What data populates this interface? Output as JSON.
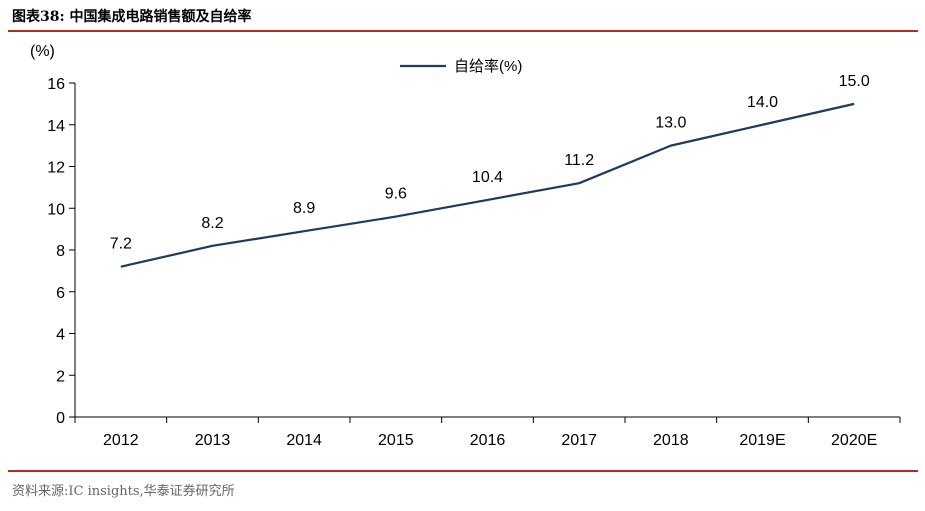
{
  "figure_title": "图表38:  中国集成电路销售额及自给率",
  "source_note": "资料来源:IC insights,华泰证券研究所",
  "colors": {
    "line": "#1f3a5f",
    "axis": "#000000",
    "rule": "#b7281e"
  },
  "chart_data": {
    "type": "line",
    "title": "",
    "ylabel": "(%)",
    "xlabel": "",
    "ylim": [
      0,
      16
    ],
    "yticks": [
      0,
      2,
      4,
      6,
      8,
      10,
      12,
      14,
      16
    ],
    "grid": false,
    "legend_position": "top-center",
    "categories": [
      "2012",
      "2013",
      "2014",
      "2015",
      "2016",
      "2017",
      "2018",
      "2019E",
      "2020E"
    ],
    "series": [
      {
        "name": "自给率(%)",
        "values": [
          7.2,
          8.2,
          8.9,
          9.6,
          10.4,
          11.2,
          13.0,
          14.0,
          15.0
        ],
        "data_labels": [
          "7.2",
          "8.2",
          "8.9",
          "9.6",
          "10.4",
          "11.2",
          "13.0",
          "14.0",
          "15.0"
        ]
      }
    ]
  }
}
